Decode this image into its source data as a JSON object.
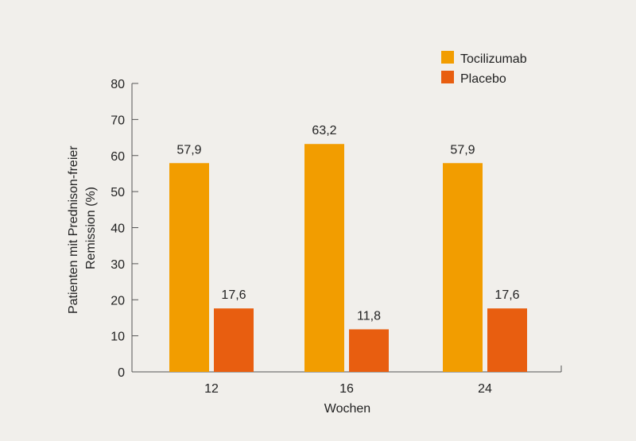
{
  "chart_data": {
    "type": "bar",
    "categories": [
      "12",
      "16",
      "24"
    ],
    "series": [
      {
        "name": "Tocilizumab",
        "values": [
          57.9,
          63.2,
          57.9
        ],
        "labels": [
          "57,9",
          "63,2",
          "57,9"
        ],
        "color": "#f29d00"
      },
      {
        "name": "Placebo",
        "values": [
          17.6,
          11.8,
          17.6
        ],
        "labels": [
          "17,6",
          "11,8",
          "17,6"
        ],
        "color": "#e85e10"
      }
    ],
    "xlabel": "Wochen",
    "ylabel_lines": [
      "Patienten mit Prednison-freier",
      "Remission (%)"
    ],
    "ylim": [
      0,
      80
    ],
    "yticks": [
      "0",
      "10",
      "20",
      "30",
      "40",
      "50",
      "60",
      "70",
      "80"
    ],
    "grid": false,
    "legend_position": "top-right"
  },
  "colors": {
    "background": "#f1efeb",
    "axis": "#555555",
    "text": "#222222"
  }
}
